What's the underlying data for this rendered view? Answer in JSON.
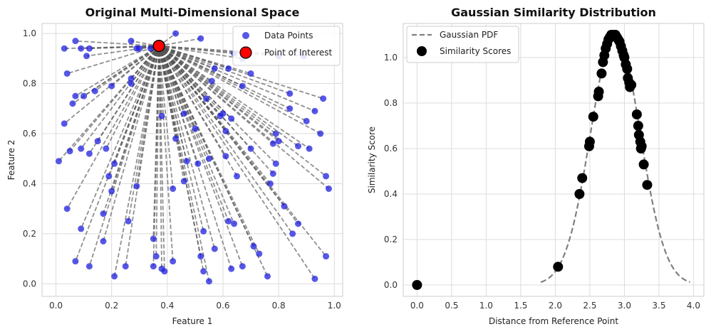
{
  "chart_data": [
    {
      "type": "scatter",
      "title": "Original Multi-Dimensional Space",
      "xlabel": "Feature 1",
      "ylabel": "Feature 2",
      "xlim": [
        -0.05,
        1.03
      ],
      "ylim": [
        -0.05,
        1.04
      ],
      "xticks": [
        "0.0",
        "0.2",
        "0.4",
        "0.6",
        "0.8",
        "1.0"
      ],
      "yticks": [
        "0.0",
        "0.2",
        "0.4",
        "0.6",
        "0.8",
        "1.0"
      ],
      "grid": true,
      "legend": "top-right",
      "colors": {
        "points": "#1f1fdd",
        "poi_fill": "#ff0000",
        "poi_edge": "#000000",
        "lines": "#555555"
      },
      "series": [
        {
          "name": "Data Points",
          "x": [
            0.43,
            0.52,
            0.07,
            0.03,
            0.09,
            0.11,
            0.12,
            0.27,
            0.3,
            0.34,
            0.04,
            0.07,
            0.1,
            0.14,
            0.2,
            0.27,
            0.06,
            0.03,
            0.05,
            0.09,
            0.15,
            0.18,
            0.12,
            0.01,
            0.21,
            0.2,
            0.29,
            0.19,
            0.17,
            0.04,
            0.26,
            0.09,
            0.17,
            0.07,
            0.12,
            0.21,
            0.25,
            0.35,
            0.35,
            0.36,
            0.38,
            0.39,
            0.42,
            0.38,
            0.43,
            0.46,
            0.5,
            0.51,
            0.55,
            0.52,
            0.53,
            0.53,
            0.55,
            0.56,
            0.57,
            0.59,
            0.6,
            0.61,
            0.62,
            0.63,
            0.64,
            0.65,
            0.67,
            0.64,
            0.67,
            0.7,
            0.7,
            0.76,
            0.77,
            0.78,
            0.79,
            0.79,
            0.8,
            0.84,
            0.84,
            0.85,
            0.87,
            0.9,
            0.91,
            0.93,
            0.95,
            0.97,
            0.97,
            0.98,
            0.96,
            0.93,
            0.87,
            0.8,
            0.71,
            0.67,
            0.73,
            0.89,
            0.63,
            0.62,
            0.57,
            0.54,
            0.61,
            0.46,
            0.47,
            0.42,
            0.27,
            0.29,
            0.78,
            0.82
          ],
          "y": [
            1.0,
            0.98,
            0.97,
            0.94,
            0.94,
            0.91,
            0.94,
            0.97,
            0.94,
            0.94,
            0.84,
            0.75,
            0.75,
            0.77,
            0.79,
            0.82,
            0.72,
            0.64,
            0.53,
            0.54,
            0.57,
            0.54,
            0.52,
            0.49,
            0.48,
            0.37,
            0.39,
            0.43,
            0.28,
            0.3,
            0.25,
            0.22,
            0.17,
            0.09,
            0.07,
            0.03,
            0.07,
            0.18,
            0.07,
            0.11,
            0.06,
            0.05,
            0.09,
            0.67,
            0.58,
            0.68,
            0.62,
            0.48,
            0.5,
            0.11,
            0.21,
            0.05,
            0.01,
            0.81,
            0.86,
            0.67,
            0.68,
            0.51,
            0.25,
            0.06,
            0.24,
            0.43,
            0.79,
            0.92,
            0.9,
            0.84,
            0.54,
            0.03,
            0.4,
            0.56,
            0.48,
            0.6,
            0.57,
            0.76,
            0.7,
            0.2,
            0.55,
            0.65,
            0.54,
            0.69,
            0.6,
            0.43,
            0.11,
            0.38,
            0.74,
            0.02,
            0.24,
            0.91,
            0.15,
            0.07,
            0.12,
            0.91,
            0.66,
            0.86,
            0.14,
            0.74,
            0.61,
            0.41,
            0.49,
            0.38,
            0.8,
            0.94,
            0.44,
            0.31
          ],
          "marker": "circle"
        },
        {
          "name": "Point of Interest",
          "x": [
            0.37
          ],
          "y": [
            0.95
          ],
          "marker": "circle"
        }
      ]
    },
    {
      "type": "line",
      "title": "Gaussian Similarity Distribution",
      "xlabel": "Distance from Reference Point",
      "ylabel": "Similarity Score",
      "xlim": [
        -0.2,
        4.15
      ],
      "ylim": [
        -0.05,
        1.15
      ],
      "xticks": [
        "0.0",
        "0.5",
        "1.0",
        "1.5",
        "2.0",
        "2.5",
        "3.0",
        "3.5",
        "4.0"
      ],
      "yticks": [
        "0.0",
        "0.2",
        "0.4",
        "0.6",
        "0.8",
        "1.0"
      ],
      "grid": true,
      "legend": "top-left",
      "colors": {
        "pdf": "#808080",
        "scores": "#000000"
      },
      "pdf": {
        "name": "Gaussian PDF",
        "mean": 2.87,
        "sigma": 0.36,
        "peak": 1.1,
        "x_range": [
          1.79,
          3.95
        ]
      },
      "series": [
        {
          "name": "Similarity Scores",
          "x": [
            0.0,
            2.04,
            2.35,
            2.39,
            2.49,
            2.5,
            2.55,
            2.62,
            2.63,
            2.67,
            2.69,
            2.71,
            2.73,
            2.75,
            2.77,
            2.79,
            2.81,
            2.83,
            2.85,
            2.87,
            2.89,
            2.91,
            2.93,
            2.95,
            2.97,
            2.99,
            3.0,
            3.02,
            3.04,
            3.05,
            3.07,
            3.08,
            3.1,
            3.18,
            3.2,
            3.21,
            3.23,
            3.24,
            3.25,
            3.28,
            3.33
          ],
          "y": [
            0.0,
            0.08,
            0.4,
            0.47,
            0.61,
            0.63,
            0.74,
            0.83,
            0.85,
            0.93,
            0.98,
            1.01,
            1.04,
            1.06,
            1.08,
            1.09,
            1.1,
            1.1,
            1.1,
            1.1,
            1.09,
            1.08,
            1.07,
            1.05,
            1.03,
            1.01,
            1.0,
            0.97,
            0.95,
            0.91,
            0.89,
            0.87,
            0.88,
            0.75,
            0.7,
            0.66,
            0.63,
            0.6,
            0.61,
            0.53,
            0.44
          ],
          "marker": "circle"
        }
      ]
    }
  ]
}
